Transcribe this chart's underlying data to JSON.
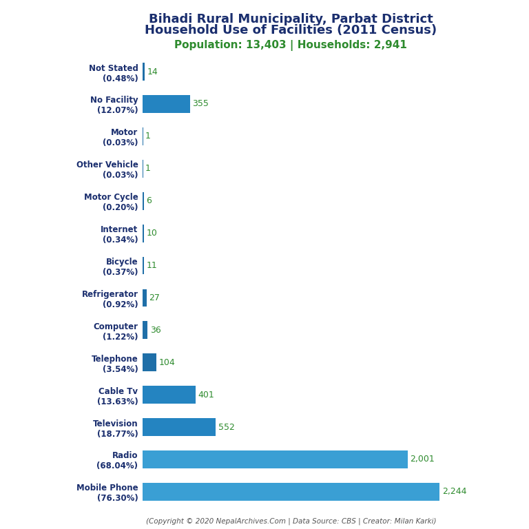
{
  "title_line1": "Bihadi Rural Municipality, Parbat District",
  "title_line2": "Household Use of Facilities (2011 Census)",
  "subtitle": "Population: 13,403 | Households: 2,941",
  "footer": "(Copyright © 2020 NepalArchives.Com | Data Source: CBS | Creator: Milan Karki)",
  "categories": [
    "Not Stated\n(0.48%)",
    "No Facility\n(12.07%)",
    "Motor\n(0.03%)",
    "Other Vehicle\n(0.03%)",
    "Motor Cycle\n(0.20%)",
    "Internet\n(0.34%)",
    "Bicycle\n(0.37%)",
    "Refrigerator\n(0.92%)",
    "Computer\n(1.22%)",
    "Telephone\n(3.54%)",
    "Cable Tv\n(13.63%)",
    "Television\n(18.77%)",
    "Radio\n(68.04%)",
    "Mobile Phone\n(76.30%)"
  ],
  "values": [
    14,
    355,
    1,
    1,
    6,
    10,
    11,
    27,
    36,
    104,
    401,
    552,
    2001,
    2244
  ],
  "bar_color_small": "#1f6fa8",
  "bar_color_medium": "#2484c1",
  "bar_color_large": "#3a9fd4",
  "title_color": "#1a2e6e",
  "subtitle_color": "#2e8b2e",
  "value_color": "#2e8b2e",
  "footer_color": "#555555",
  "background_color": "#ffffff",
  "xlim": [
    0,
    2600
  ]
}
